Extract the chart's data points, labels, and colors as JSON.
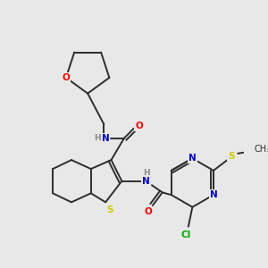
{
  "background_color": "#e8e8e8",
  "bond_color": "#2d2d2d",
  "atom_colors": {
    "O": "#ff0000",
    "N": "#0000cc",
    "S": "#cccc00",
    "Cl": "#00aa00",
    "H": "#888888",
    "C": "#2d2d2d"
  },
  "figsize": [
    3.0,
    3.0
  ],
  "dpi": 100,
  "lw": 1.4
}
